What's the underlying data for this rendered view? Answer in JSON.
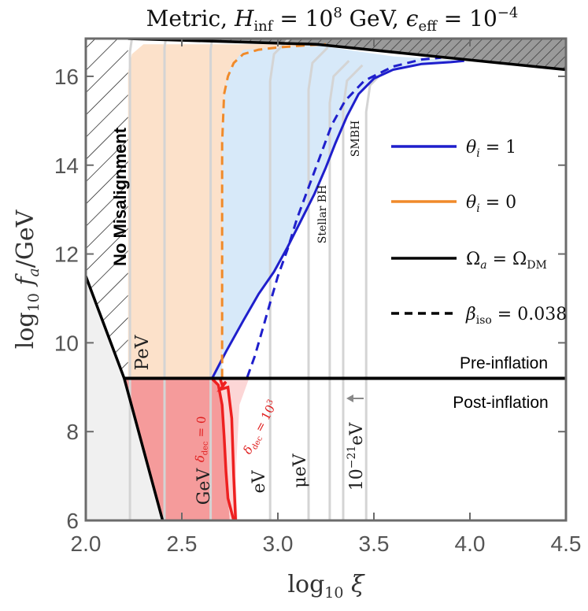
{
  "chart_data": {
    "type": "line",
    "title": "Metric,  H_inf = 10^8 GeV,  ε_eff = 10^−4",
    "title_parts": {
      "prefix": "Metric,",
      "h_label": "H",
      "h_sub": "inf",
      "h_value_base": " = 10",
      "h_value_exp": "8",
      "h_unit": " GeV,",
      "eps_label": "ϵ",
      "eps_sub": "eff",
      "eps_value_base": " = 10",
      "eps_value_exp": "−4"
    },
    "xlabel": "log10 ξ",
    "xlabel_parts": {
      "prefix": "log",
      "sub": "10",
      "var": "ξ"
    },
    "ylabel": "log10 f_a/GeV",
    "ylabel_parts": {
      "prefix": "log",
      "sub": "10",
      "var": "f",
      "var_sub": "a",
      "suffix": "/GeV"
    },
    "xlim": [
      2.0,
      4.5
    ],
    "ylim": [
      6.0,
      16.85
    ],
    "xticks": [
      2.0,
      2.5,
      3.0,
      3.5,
      4.0,
      4.5
    ],
    "xtick_labels": [
      "2.0",
      "2.5",
      "3.0",
      "3.5",
      "4.0",
      "4.5"
    ],
    "yticks": [
      6,
      8,
      10,
      12,
      14,
      16
    ],
    "ytick_labels": [
      "6",
      "8",
      "10",
      "12",
      "14",
      "16"
    ],
    "legend": {
      "position": "right",
      "entries": [
        {
          "label": "θ_i = 1",
          "var": "θ",
          "sub": "i",
          "rest": " = 1",
          "color": "#1f1fcc",
          "style": "solid"
        },
        {
          "label": "θ_i = 0",
          "var": "θ",
          "sub": "i",
          "rest": " = 0",
          "color": "#f08a2a",
          "style": "solid"
        },
        {
          "label": "Ω_a = Ω_DM",
          "var": "Ω",
          "sub": "a",
          "rest": " = Ω",
          "sub2": "DM",
          "color": "#000000",
          "style": "solid"
        },
        {
          "label": "β_iso = 0.038",
          "var": "β",
          "sub": "iso",
          "rest": " = 0.038",
          "color": "#000000",
          "style": "dashed"
        }
      ]
    },
    "regions": {
      "pre_inflation": "Pre-inflation",
      "post_inflation": "Post-inflation",
      "no_misalignment": "No Misalignment"
    },
    "divider_y": 9.2,
    "mass_labels": [
      "PeV",
      "GeV",
      "eV",
      "μeV",
      "10^−21eV"
    ],
    "mass_label_parts": {
      "pev": "PeV",
      "gev": "GeV",
      "ev": "eV",
      "uev": "μeV",
      "zev_base": "10",
      "zev_exp": "−21",
      "zev_unit": "eV"
    },
    "bh_labels": {
      "stellar": "Stellar BH",
      "smbh": "SMBH"
    },
    "delta_labels": {
      "d0_var": "δ",
      "d0_sub": "dec",
      "d0_rest": " = 0",
      "d1_var": "δ",
      "d1_sub": "dec",
      "d1_rest": " = 10",
      "d1_exp": "3"
    },
    "series": [
      {
        "name": "theta_i_1_solid",
        "color": "#1f1fcc",
        "style": "solid",
        "x": [
          2.66,
          2.73,
          2.82,
          2.9,
          2.98,
          3.05,
          3.12,
          3.19,
          3.25,
          3.3,
          3.36,
          3.42,
          3.5,
          3.6,
          3.75,
          3.9,
          3.97
        ],
        "y": [
          9.22,
          9.8,
          10.5,
          11.1,
          11.6,
          12.15,
          12.75,
          13.35,
          13.95,
          14.5,
          15.1,
          15.6,
          15.95,
          16.15,
          16.28,
          16.32,
          16.35
        ]
      },
      {
        "name": "theta_i_1_dashed",
        "color": "#1f1fcc",
        "style": "dashed",
        "x": [
          2.84,
          2.88,
          2.92,
          2.96,
          3.0,
          3.05,
          3.1,
          3.16,
          3.22,
          3.28,
          3.35,
          3.45,
          3.6,
          3.75,
          3.85
        ],
        "y": [
          9.22,
          9.7,
          10.3,
          10.9,
          11.5,
          12.1,
          12.8,
          13.5,
          14.2,
          14.9,
          15.45,
          15.9,
          16.22,
          16.38,
          16.42
        ]
      },
      {
        "name": "theta_i_0_dashed",
        "color": "#f08a2a",
        "style": "dashed",
        "x": [
          2.71,
          2.71,
          2.71,
          2.72,
          2.74,
          2.77,
          2.82,
          2.9,
          3.0,
          3.15,
          3.25
        ],
        "y": [
          9.22,
          12.0,
          14.5,
          15.6,
          16.0,
          16.3,
          16.5,
          16.6,
          16.65,
          16.7,
          16.72
        ]
      },
      {
        "name": "delta_dec_0",
        "color": "#ee2020",
        "style": "solid",
        "x": [
          2.66,
          2.69,
          2.71,
          2.72,
          2.73,
          2.74,
          2.77
        ],
        "y": [
          9.18,
          9.05,
          8.6,
          7.9,
          7.1,
          6.5,
          6.0
        ]
      },
      {
        "name": "delta_dec_1e3",
        "color": "#ee2020",
        "style": "solid",
        "x": [
          2.7,
          2.71,
          2.73,
          2.7,
          2.74,
          2.76,
          2.77,
          2.78
        ],
        "y": [
          9.18,
          9.05,
          9.12,
          8.95,
          9.0,
          8.3,
          7.0,
          6.0
        ]
      }
    ]
  }
}
